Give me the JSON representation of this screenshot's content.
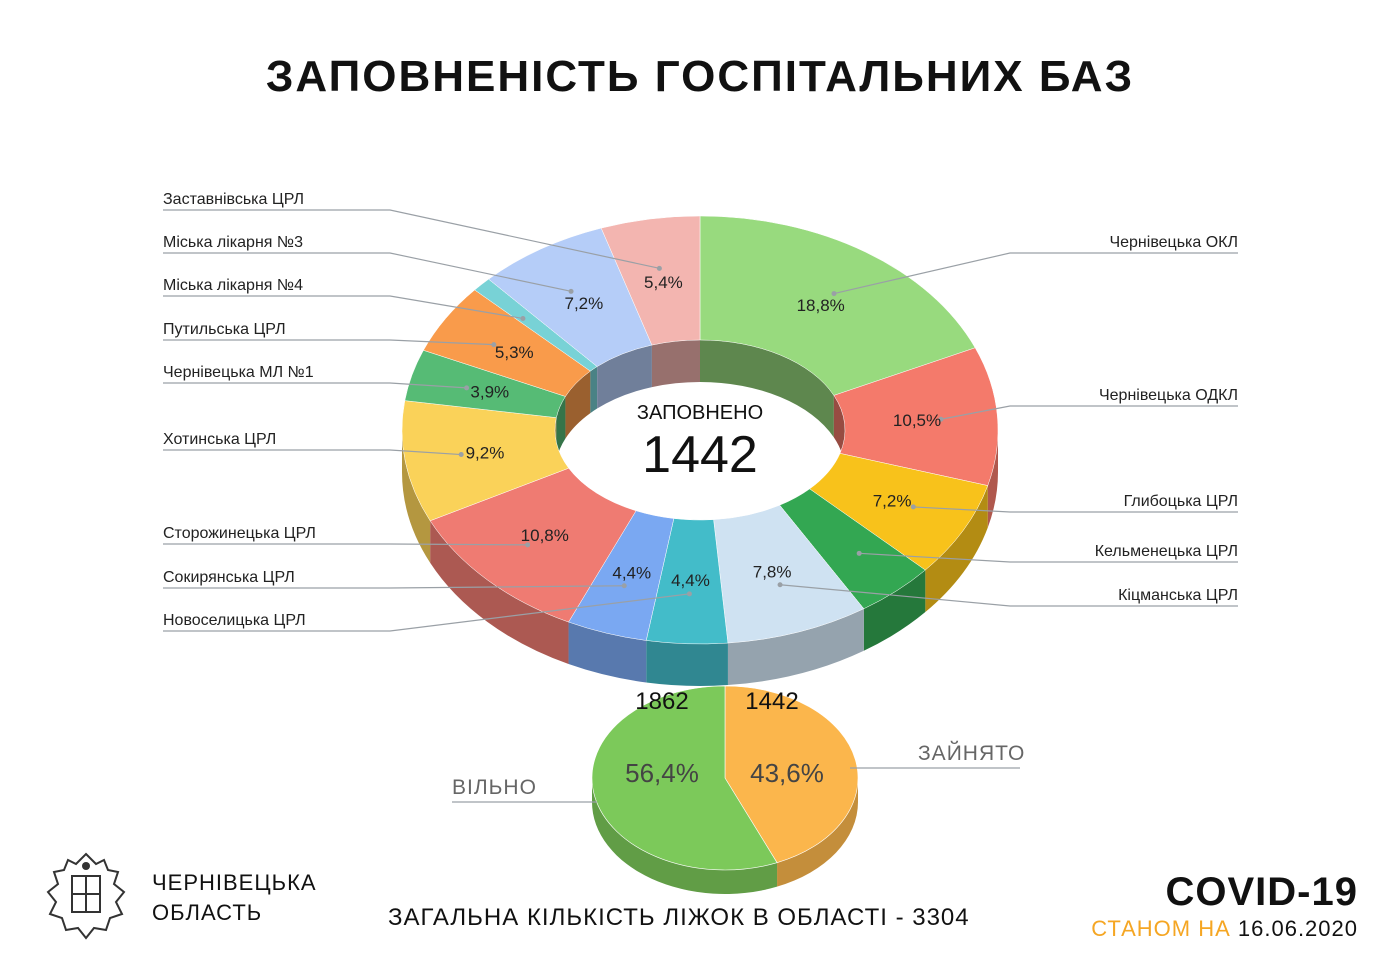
{
  "title": "ЗАПОВНЕНІСТЬ ГОСПІТАЛЬНИХ БАЗ",
  "footer": {
    "region_line1": "ЧЕРНІВЕЦЬКА",
    "region_line2": "ОБЛАСТЬ",
    "total_text": "ЗАГАЛЬНА КІЛЬКІСТЬ ЛІЖОК В ОБЛАСТІ  - 3304",
    "covid": "COVID-19",
    "as_of_label": "СТАНОМ НА",
    "as_of_date": "16.06.2020",
    "accent_color": "#f5a623"
  },
  "chart_data": [
    {
      "type": "pie",
      "style": "donut-3d",
      "center_label": "ЗАПОВНЕНО",
      "center_value": "1442",
      "slices": [
        {
          "name": "Чернівецька ОКЛ",
          "value": 18.8,
          "label": "18,8%",
          "color": "#98da7e",
          "side": "right"
        },
        {
          "name": "Чернівецька ОДКЛ",
          "value": 10.5,
          "label": "10,5%",
          "color": "#f47a6b",
          "side": "right"
        },
        {
          "name": "Глибоцька ЦРЛ",
          "value": 7.2,
          "label": "7,2%",
          "color": "#f8c21b",
          "side": "right"
        },
        {
          "name": "Кельменецька ЦРЛ",
          "value": 4.4,
          "label": "",
          "color": "#33a752",
          "side": "right"
        },
        {
          "name": "Кіцманська ЦРЛ",
          "value": 7.8,
          "label": "7,8%",
          "color": "#cfe2f2",
          "side": "right"
        },
        {
          "name": "Новоселицька ЦРЛ",
          "value": 4.4,
          "label": "4,4%",
          "color": "#43bcc9",
          "side": "left"
        },
        {
          "name": "Сокирянська ЦРЛ",
          "value": 4.4,
          "label": "4,4%",
          "color": "#7aa8f2",
          "side": "left"
        },
        {
          "name": "Сторожинецька ЦРЛ",
          "value": 10.8,
          "label": "10,8%",
          "color": "#ef7b72",
          "side": "left"
        },
        {
          "name": "Хотинська ЦРЛ",
          "value": 9.2,
          "label": "9,2%",
          "color": "#fad259",
          "side": "left"
        },
        {
          "name": "Чернівецька МЛ №1",
          "value": 3.9,
          "label": "3,9%",
          "color": "#56bb75",
          "side": "left"
        },
        {
          "name": "Путильська ЦРЛ",
          "value": 5.3,
          "label": "5,3%",
          "color": "#f99b4b",
          "side": "left"
        },
        {
          "name": "Міська лікарня №4",
          "value": 1.1,
          "label": "",
          "color": "#78d2d6",
          "side": "left"
        },
        {
          "name": "Міська лікарня №3",
          "value": 7.2,
          "label": "7,2%",
          "color": "#b5cdf8",
          "side": "left"
        },
        {
          "name": "Заставнівська ЦРЛ",
          "value": 5.4,
          "label": "5,4%",
          "color": "#f3b5b0",
          "side": "left"
        }
      ]
    },
    {
      "type": "pie",
      "style": "pie-3d",
      "slices": [
        {
          "name": "ЗАЙНЯТО",
          "value": 43.6,
          "label": "43,6%",
          "count": "1442",
          "color": "#fbb64c"
        },
        {
          "name": "ВІЛЬНО",
          "value": 56.4,
          "label": "56,4%",
          "count": "1862",
          "color": "#7cc95a"
        }
      ]
    }
  ]
}
